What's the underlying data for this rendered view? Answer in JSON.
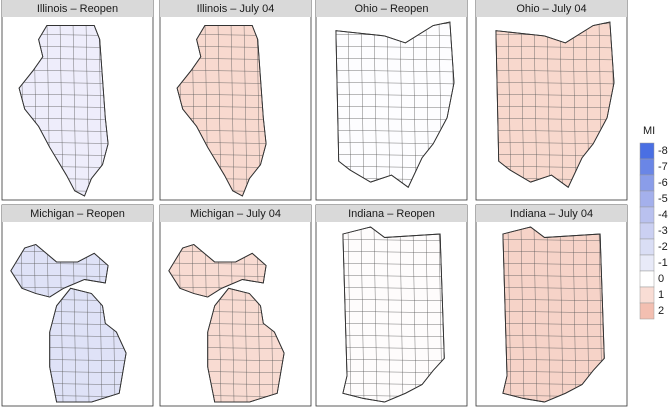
{
  "panels": [
    {
      "title": "Illinois – Reopen"
    },
    {
      "title": "Illinois – July 04"
    },
    {
      "title": "Ohio – Reopen"
    },
    {
      "title": "Ohio – July 04"
    },
    {
      "title": "Michigan – Reopen"
    },
    {
      "title": "Michigan – July 04"
    },
    {
      "title": "Indiana – Reopen"
    },
    {
      "title": "Indiana – July 04"
    }
  ],
  "legend": {
    "title": "MI",
    "ticks": [
      -8,
      -7,
      -6,
      -5,
      -4,
      -3,
      -2,
      -1,
      0,
      1,
      2
    ],
    "colors": [
      "#4a6fe3",
      "#6a86e6",
      "#8a9de9",
      "#a4b0ec",
      "#b9c1ef",
      "#cbd0f2",
      "#dadef5",
      "#e8eaf8",
      "#ffffff",
      "#f9ddd5",
      "#f3bfb1"
    ]
  }
}
